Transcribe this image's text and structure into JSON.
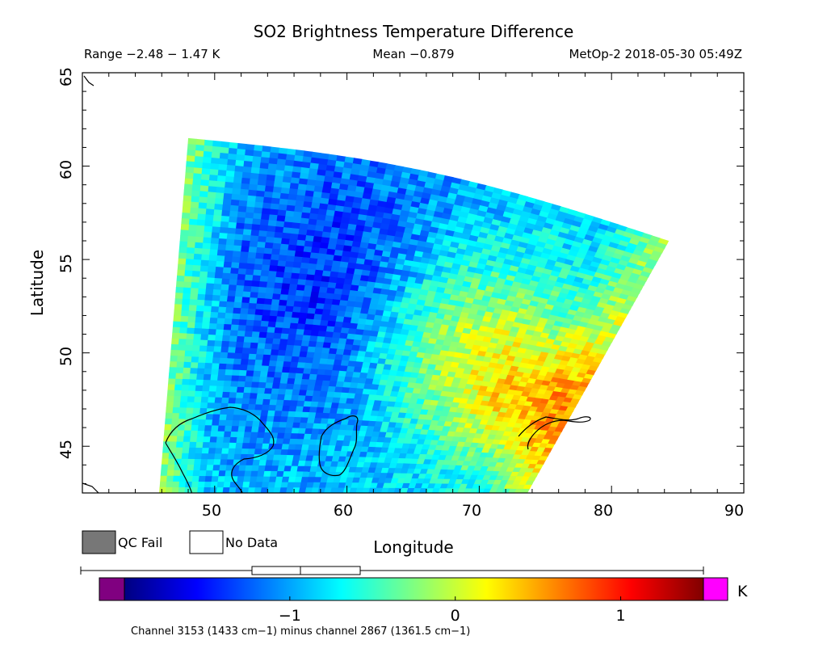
{
  "chart_data": {
    "type": "heatmap",
    "title": "SO2 Brightness Temperature Difference",
    "subtitle_range": "Range −2.48 − 1.47 K",
    "subtitle_mean": "Mean −0.879",
    "subtitle_source": "MetOp-2 2018-05-30 05:49Z",
    "xlabel": "Longitude",
    "ylabel": "Latitude",
    "xlim": [
      40,
      90
    ],
    "ylim": [
      42.5,
      65
    ],
    "x_ticks": [
      "50",
      "60",
      "70",
      "80",
      "90"
    ],
    "x_tick_values": [
      50,
      60,
      70,
      80,
      90
    ],
    "y_ticks": [
      "45",
      "50",
      "55",
      "60",
      "65"
    ],
    "y_tick_values": [
      45,
      50,
      55,
      60,
      65
    ],
    "range_min": -2.48,
    "range_max": 1.47,
    "mean": -0.879,
    "unit": "K",
    "swath_corners": {
      "top_left": [
        48,
        61.5
      ],
      "top_right": [
        84.3,
        56
      ],
      "bottom_right": [
        73.6,
        42.5
      ],
      "bottom_left": [
        45.8,
        42.5
      ]
    },
    "features": [
      {
        "name": "low band",
        "lon": 61.5,
        "lat": 53,
        "value": -1.7
      },
      {
        "name": "elevated arc",
        "lon": 70,
        "lat": 50,
        "value": -0.2
      },
      {
        "name": "high spot",
        "lon": 73,
        "lat": 48,
        "value": 0.35
      }
    ],
    "colorbar": {
      "min": -2.0,
      "max": 1.5,
      "ticks": [
        "−1",
        "0",
        "1"
      ],
      "tick_values": [
        -1,
        0,
        1
      ],
      "unit": "K",
      "caption": "Channel 3153 (1433 cm−1) minus channel 2867 (1361.5 cm−1)"
    },
    "legend": {
      "qc_fail": "QC Fail",
      "no_data": "No Data",
      "qc_color": "#777777",
      "nodata_color": "#ffffff"
    },
    "colors": {
      "under": "#800080",
      "over": "#ff00ff",
      "ramp": [
        "#000080",
        "#0000ff",
        "#0080ff",
        "#00ffff",
        "#80ff80",
        "#ffff00",
        "#ff8000",
        "#ff0000",
        "#800000"
      ]
    }
  }
}
